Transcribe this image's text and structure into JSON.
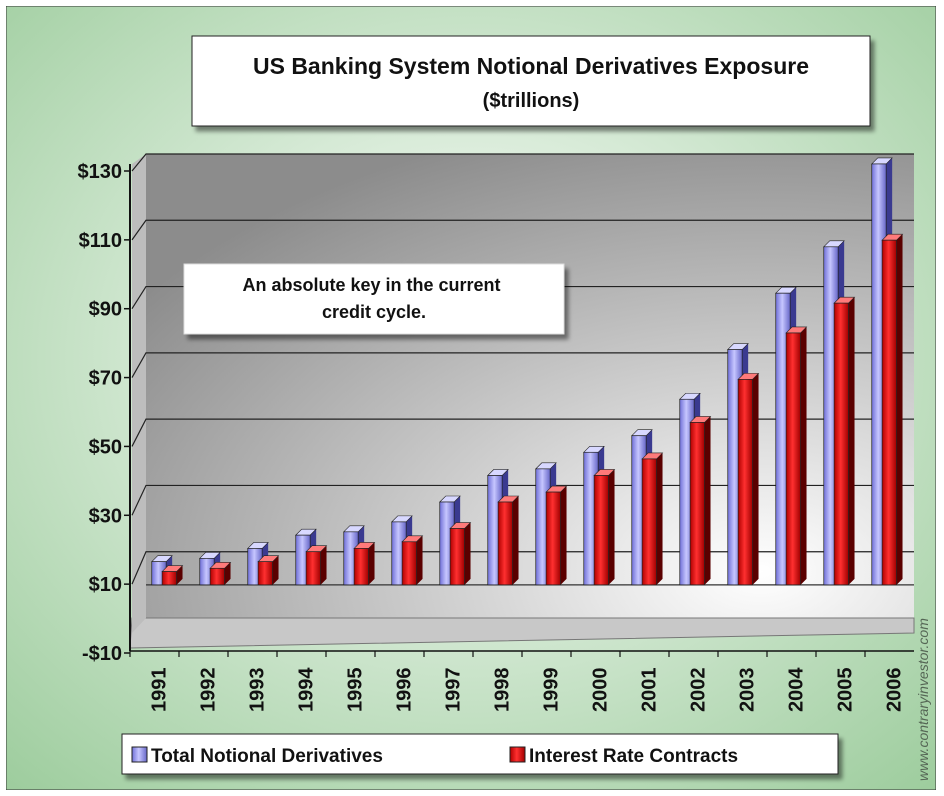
{
  "chart_data": {
    "type": "bar",
    "title": "US Banking System Notional Derivatives Exposure",
    "subtitle": "($trillions)",
    "annotation": "An absolute key in the current credit cycle.",
    "annotation_lines": [
      "An absolute key in the current",
      "credit cycle."
    ],
    "watermark": "www.contraryinvestor.com",
    "categories": [
      "1991",
      "1992",
      "1993",
      "1994",
      "1995",
      "1996",
      "1997",
      "1998",
      "1999",
      "2000",
      "2001",
      "2002",
      "2003",
      "2004",
      "2005",
      "2006"
    ],
    "series": [
      {
        "name": "Total Notional Derivatives",
        "values": [
          7,
          8,
          11,
          15,
          16,
          19,
          25,
          33,
          35,
          40,
          45,
          56,
          71,
          88,
          102,
          127
        ],
        "color": "#9b9bf0"
      },
      {
        "name": "Interest Rate Contracts",
        "values": [
          4,
          5,
          7,
          10,
          11,
          13,
          17,
          25,
          28,
          33,
          38,
          49,
          62,
          76,
          85,
          104
        ],
        "color": "#e01010"
      }
    ],
    "yticks": [
      "$130",
      "$110",
      "$90",
      "$70",
      "$50",
      "$30",
      "$10",
      "-$10"
    ],
    "ylim": [
      -10,
      130
    ],
    "ytick_step": 20,
    "xlabel": "",
    "ylabel": "",
    "grid": true,
    "legend_position": "bottom",
    "colors": {
      "background_light": "#ffffff",
      "background_dark": "#9ccc9c",
      "plot_light": "#ffffff",
      "plot_dark": "#8c8c8c",
      "grid": "#222222"
    }
  }
}
